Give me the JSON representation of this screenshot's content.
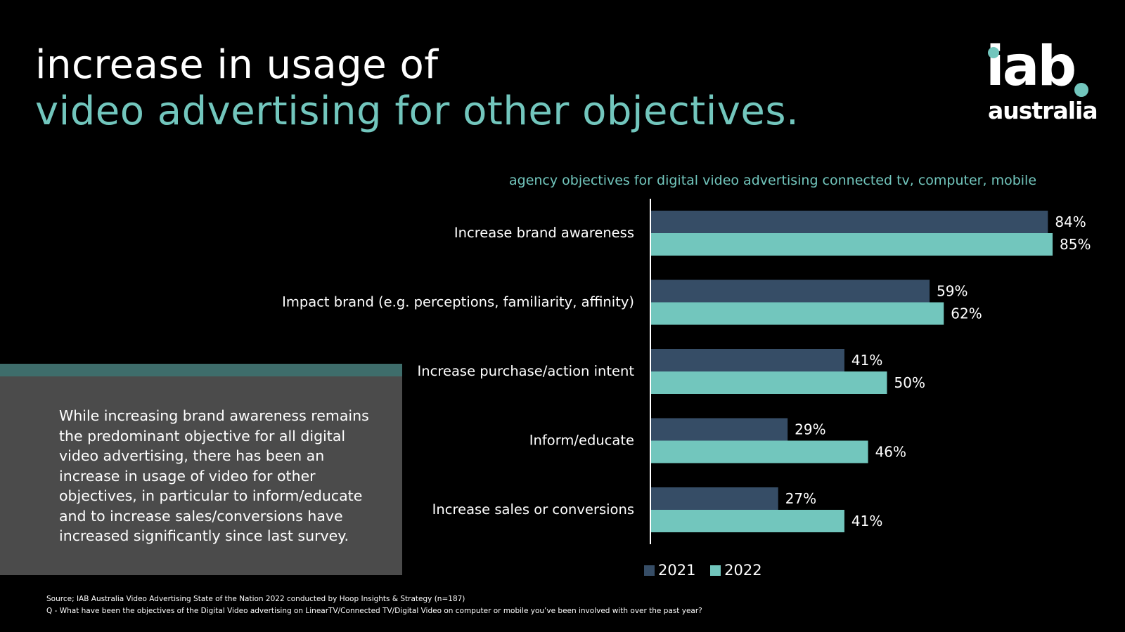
{
  "title": {
    "line1": "increase in usage of",
    "line2": "video advertising for other objectives."
  },
  "logo": {
    "word1": "iab",
    "word2": "australia"
  },
  "chart_data": {
    "type": "bar",
    "orientation": "horizontal",
    "title": "agency objectives for digital video advertising connected tv, computer, mobile",
    "categories": [
      "Increase brand awareness",
      "Impact brand (e.g. perceptions, familiarity, affinity)",
      "Increase purchase/action intent",
      "Inform/educate",
      "Increase sales or conversions"
    ],
    "series": [
      {
        "name": "2021",
        "color": "#364d66",
        "values": [
          84,
          59,
          41,
          29,
          27
        ]
      },
      {
        "name": "2022",
        "color": "#72c6bd",
        "values": [
          85,
          62,
          50,
          46,
          41
        ]
      }
    ],
    "value_suffix": "%",
    "xlim": [
      0,
      100
    ],
    "grid": false,
    "legend_position": "bottom"
  },
  "summary": {
    "text": "While increasing brand awareness remains the predominant objective for all digital video advertising, there has been an increase in usage of video for other objectives, in particular to inform/educate and to increase sales/conversions have increased significantly since last survey."
  },
  "source": {
    "line1": "Source; IAB Australia Video Advertising State of the Nation 2022 conducted by Hoop Insights & Strategy (n=187)",
    "line2": "Q - What have been the objectives of the Digital Video advertising on LinearTV/Connected TV/Digital Video on computer or mobile you’ve been involved with over the past year?"
  }
}
